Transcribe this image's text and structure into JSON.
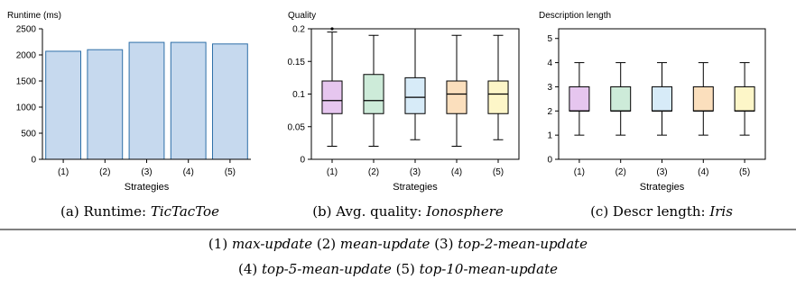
{
  "chart_data": [
    {
      "type": "bar",
      "title": "Runtime (ms)",
      "xlabel": "Strategies",
      "categories": [
        "(1)",
        "(2)",
        "(3)",
        "(4)",
        "(5)"
      ],
      "values": [
        2070,
        2100,
        2240,
        2240,
        2210
      ],
      "ylim": [
        0,
        2500
      ],
      "yticks": [
        "0",
        "500",
        "1000",
        "1500",
        "2000",
        "2500"
      ],
      "bar_color": "#c6d9ee",
      "bar_edge": "#2e6fa8",
      "caption": {
        "label": "(a) Runtime: ",
        "dataset": "TicTacToe"
      }
    },
    {
      "type": "box",
      "title": "Quality",
      "xlabel": "Strategies",
      "categories": [
        "(1)",
        "(2)",
        "(3)",
        "(4)",
        "(5)"
      ],
      "ylim": [
        0,
        0.2
      ],
      "yticks": [
        "0",
        "0.05",
        "0.1",
        "0.15",
        "0.2"
      ],
      "boxes": [
        {
          "whisker_low": 0.02,
          "q1": 0.07,
          "median": 0.09,
          "q3": 0.12,
          "whisker_high": 0.195,
          "outliers": [
            0.2
          ]
        },
        {
          "whisker_low": 0.02,
          "q1": 0.07,
          "median": 0.09,
          "q3": 0.13,
          "whisker_high": 0.19,
          "outliers": []
        },
        {
          "whisker_low": 0.03,
          "q1": 0.07,
          "median": 0.095,
          "q3": 0.125,
          "whisker_high": 0.2,
          "outliers": []
        },
        {
          "whisker_low": 0.02,
          "q1": 0.07,
          "median": 0.1,
          "q3": 0.12,
          "whisker_high": 0.19,
          "outliers": []
        },
        {
          "whisker_low": 0.03,
          "q1": 0.07,
          "median": 0.1,
          "q3": 0.12,
          "whisker_high": 0.19,
          "outliers": []
        }
      ],
      "box_colors": [
        "#e6c6ef",
        "#cdebd9",
        "#d7ebf8",
        "#fbdfbd",
        "#fdf6c8"
      ],
      "caption": {
        "label": "(b) Avg. quality: ",
        "dataset": "Ionosphere"
      }
    },
    {
      "type": "box",
      "title": "Description length",
      "xlabel": "Strategies",
      "categories": [
        "(1)",
        "(2)",
        "(3)",
        "(4)",
        "(5)"
      ],
      "ylim": [
        0,
        5.4
      ],
      "yticks": [
        "0",
        "1",
        "2",
        "3",
        "4",
        "5"
      ],
      "boxes": [
        {
          "whisker_low": 1,
          "q1": 2,
          "median": 2,
          "q3": 3,
          "whisker_high": 4,
          "outliers": []
        },
        {
          "whisker_low": 1,
          "q1": 2,
          "median": 2,
          "q3": 3,
          "whisker_high": 4,
          "outliers": []
        },
        {
          "whisker_low": 1,
          "q1": 2,
          "median": 2,
          "q3": 3,
          "whisker_high": 4,
          "outliers": []
        },
        {
          "whisker_low": 1,
          "q1": 2,
          "median": 2,
          "q3": 3,
          "whisker_high": 4,
          "outliers": []
        },
        {
          "whisker_low": 1,
          "q1": 2,
          "median": 2,
          "q3": 3,
          "whisker_high": 4,
          "outliers": []
        }
      ],
      "box_colors": [
        "#e6c6ef",
        "#cdebd9",
        "#d7ebf8",
        "#fbdfbd",
        "#fdf6c8"
      ],
      "caption": {
        "label": "(c) Descr length: ",
        "dataset": "Iris"
      }
    }
  ],
  "legend": {
    "line1": [
      {
        "num": "(1)",
        "name": "max-update"
      },
      {
        "num": "(2)",
        "name": "mean-update"
      },
      {
        "num": "(3)",
        "name": "top-2-mean-update"
      }
    ],
    "line2": [
      {
        "num": "(4)",
        "name": "top-5-mean-update"
      },
      {
        "num": "(5)",
        "name": "top-10-mean-update"
      }
    ]
  }
}
